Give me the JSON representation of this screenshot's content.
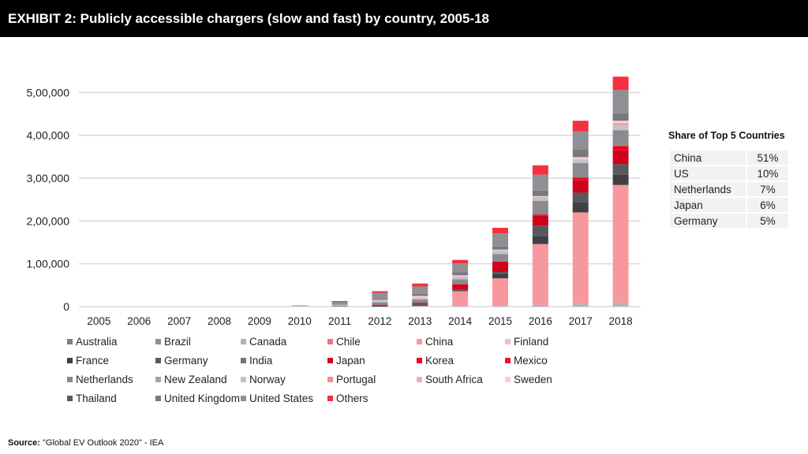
{
  "header": {
    "title": "EXHIBIT 2: Publicly accessible chargers (slow and fast) by country, 2005-18"
  },
  "chart_data": {
    "type": "bar",
    "stacked": true,
    "title": "",
    "xlabel": "",
    "ylabel": "",
    "ylim": [
      0,
      600000
    ],
    "yticks": [
      0,
      100000,
      200000,
      300000,
      400000,
      500000
    ],
    "ytick_labels": [
      "0",
      "1,00,000",
      "2,00,000",
      "3,00,000",
      "4,00,000",
      "5,00,000"
    ],
    "grid": true,
    "legend_placement": "bottom",
    "categories": [
      "2005",
      "2006",
      "2007",
      "2008",
      "2009",
      "2010",
      "2011",
      "2012",
      "2013",
      "2014",
      "2015",
      "2016",
      "2017",
      "2018"
    ],
    "series": [
      {
        "name": "Australia",
        "color": "#7f7f84",
        "values": [
          0,
          0,
          0,
          0,
          0,
          0,
          0,
          0,
          0,
          0,
          0,
          0,
          0,
          0
        ]
      },
      {
        "name": "Brazil",
        "color": "#8e8e93",
        "values": [
          0,
          0,
          0,
          0,
          0,
          0,
          0,
          0,
          0,
          0,
          0,
          0,
          0,
          0
        ]
      },
      {
        "name": "Canada",
        "color": "#b4b4b8",
        "values": [
          0,
          0,
          0,
          0,
          0,
          0,
          0,
          0,
          1000,
          2000,
          3000,
          4000,
          7000,
          9000
        ]
      },
      {
        "name": "Chile",
        "color": "#f0747f",
        "values": [
          0,
          0,
          0,
          0,
          0,
          0,
          0,
          0,
          0,
          0,
          0,
          0,
          0,
          0
        ]
      },
      {
        "name": "China",
        "color": "#f7989f",
        "values": [
          0,
          0,
          0,
          0,
          0,
          0,
          0,
          0,
          1000,
          34000,
          63000,
          142000,
          213000,
          275000
        ]
      },
      {
        "name": "Finland",
        "color": "#f9bcc1",
        "values": [
          0,
          0,
          0,
          0,
          0,
          0,
          0,
          0,
          0,
          0,
          0,
          0,
          0,
          0
        ]
      },
      {
        "name": "France",
        "color": "#404044",
        "values": [
          0,
          0,
          0,
          0,
          0,
          0,
          0,
          2000,
          3000,
          2000,
          11000,
          19000,
          23000,
          24000
        ]
      },
      {
        "name": "Germany",
        "color": "#58585d",
        "values": [
          0,
          0,
          0,
          0,
          0,
          0,
          0,
          2000,
          1000,
          1000,
          4000,
          24000,
          23000,
          25000
        ]
      },
      {
        "name": "India",
        "color": "#747479",
        "values": [
          0,
          0,
          0,
          0,
          0,
          0,
          0,
          0,
          0,
          0,
          0,
          0,
          0,
          0
        ]
      },
      {
        "name": "Japan",
        "color": "#d0021b",
        "values": [
          0,
          0,
          0,
          0,
          0,
          0,
          0,
          1000,
          3000,
          13000,
          23000,
          24000,
          29000,
          32000
        ]
      },
      {
        "name": "Korea",
        "color": "#e8071e",
        "values": [
          0,
          0,
          0,
          0,
          0,
          0,
          0,
          0,
          0,
          1000,
          1000,
          2000,
          6000,
          9000
        ]
      },
      {
        "name": "Mexico",
        "color": "#ee1427",
        "values": [
          0,
          0,
          0,
          0,
          0,
          0,
          0,
          0,
          0,
          0,
          0,
          0,
          0,
          2000
        ]
      },
      {
        "name": "Netherlands",
        "color": "#8a8a90",
        "values": [
          0,
          0,
          0,
          0,
          0,
          0,
          2000,
          5000,
          8000,
          11000,
          18000,
          32000,
          34000,
          36000
        ]
      },
      {
        "name": "New Zealand",
        "color": "#a5a5aa",
        "values": [
          0,
          0,
          0,
          0,
          0,
          0,
          0,
          0,
          0,
          0,
          0,
          0,
          0,
          0
        ]
      },
      {
        "name": "Norway",
        "color": "#c3c3c7",
        "values": [
          0,
          0,
          0,
          0,
          0,
          2000,
          2000,
          4000,
          4000,
          6000,
          8000,
          9000,
          9000,
          12000
        ]
      },
      {
        "name": "Portugal",
        "color": "#f48e97",
        "values": [
          0,
          0,
          0,
          0,
          0,
          0,
          0,
          0,
          0,
          0,
          0,
          0,
          0,
          4000
        ]
      },
      {
        "name": "South Africa",
        "color": "#f9a8ae",
        "values": [
          0,
          0,
          0,
          0,
          0,
          0,
          0,
          0,
          0,
          0,
          0,
          0,
          0,
          0
        ]
      },
      {
        "name": "Sweden",
        "color": "#fccdd1",
        "values": [
          0,
          0,
          0,
          0,
          0,
          0,
          0,
          1000,
          4000,
          3000,
          2000,
          2000,
          5000,
          6000
        ]
      },
      {
        "name": "Thailand",
        "color": "#5a5a5f",
        "values": [
          0,
          0,
          0,
          0,
          0,
          0,
          0,
          0,
          0,
          0,
          0,
          0,
          0,
          0
        ]
      },
      {
        "name": "United Kingdom",
        "color": "#78787d",
        "values": [
          0,
          0,
          0,
          0,
          0,
          0,
          0,
          0,
          5000,
          7000,
          7000,
          13000,
          18000,
          17000
        ]
      },
      {
        "name": "United States",
        "color": "#8f8f94",
        "values": [
          0,
          0,
          0,
          0,
          0,
          1000,
          7000,
          17000,
          17000,
          21000,
          31000,
          37000,
          42000,
          55000
        ]
      },
      {
        "name": "Others",
        "color": "#f6303f",
        "values": [
          0,
          0,
          0,
          0,
          0,
          0,
          2000,
          4000,
          7000,
          8000,
          13000,
          22000,
          25000,
          31000
        ]
      }
    ]
  },
  "share_table": {
    "title": "Share of Top 5 Countries",
    "rows": [
      {
        "country": "China",
        "share": "51%"
      },
      {
        "country": "US",
        "share": "10%"
      },
      {
        "country": "Netherlands",
        "share": "7%"
      },
      {
        "country": "Japan",
        "share": "6%"
      },
      {
        "country": "Germany",
        "share": "5%"
      }
    ]
  },
  "source": {
    "label": "Source:",
    "text": " \"Global EV Outlook 2020\" - IEA"
  }
}
